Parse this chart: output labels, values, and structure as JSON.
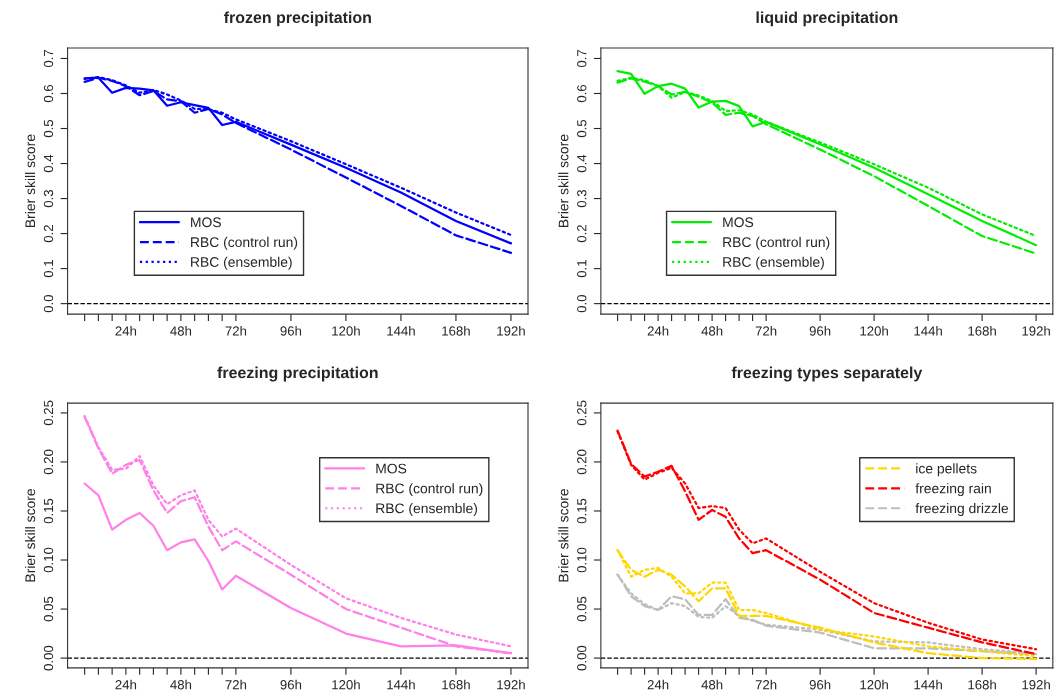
{
  "chart_data": [
    {
      "type": "line",
      "title": "frozen precipitation",
      "ylabel": "Brier skill score",
      "x": [
        6,
        12,
        18,
        24,
        30,
        36,
        42,
        48,
        54,
        60,
        66,
        72,
        96,
        120,
        144,
        168,
        192
      ],
      "xlim": [
        -1.44,
        199.44
      ],
      "ylim": [
        -0.03,
        0.73
      ],
      "xticks": [
        {
          "value": 6,
          "label": null
        },
        {
          "value": 12,
          "label": null
        },
        {
          "value": 18,
          "label": null
        },
        {
          "value": 24,
          "label": "24h"
        },
        {
          "value": 30,
          "label": null
        },
        {
          "value": 36,
          "label": null
        },
        {
          "value": 42,
          "label": null
        },
        {
          "value": 48,
          "label": "48h"
        },
        {
          "value": 54,
          "label": null
        },
        {
          "value": 60,
          "label": null
        },
        {
          "value": 66,
          "label": null
        },
        {
          "value": 72,
          "label": "72h"
        },
        {
          "value": 96,
          "label": "96h"
        },
        {
          "value": 120,
          "label": "120h"
        },
        {
          "value": 144,
          "label": "144h"
        },
        {
          "value": 168,
          "label": "168h"
        },
        {
          "value": 192,
          "label": "192h"
        }
      ],
      "yticks": [
        {
          "value": 0,
          "label": "0.0"
        },
        0.1,
        0.2,
        0.3,
        0.4,
        0.5,
        0.6,
        0.7
      ],
      "legend": "bottom left",
      "grid": false,
      "ref_lines": [
        {
          "axis": "y",
          "value": 0,
          "color": "#000000",
          "line_style": "dashed"
        }
      ],
      "series": [
        {
          "name": "MOS",
          "color": "#0000ff",
          "line_style": "solid",
          "values": [
            0.643,
            0.645,
            0.602,
            0.616,
            0.614,
            0.609,
            0.565,
            0.575,
            0.567,
            0.559,
            0.51,
            0.519,
            0.454,
            0.388,
            0.317,
            0.236,
            0.172
          ]
        },
        {
          "name": "RBC (control run)",
          "color": "#0000ff",
          "line_style": "dashed",
          "values": [
            0.633,
            0.645,
            0.636,
            0.621,
            0.595,
            0.607,
            0.583,
            0.578,
            0.545,
            0.556,
            0.54,
            0.516,
            0.44,
            0.36,
            0.279,
            0.195,
            0.145
          ]
        },
        {
          "name": "RBC (ensemble)",
          "color": "#0000ff",
          "line_style": "dotted",
          "values": [
            0.642,
            0.647,
            0.638,
            0.623,
            0.602,
            0.61,
            0.597,
            0.58,
            0.556,
            0.555,
            0.545,
            0.526,
            0.464,
            0.398,
            0.331,
            0.26,
            0.196
          ]
        }
      ]
    },
    {
      "type": "line",
      "title": "liquid precipitation",
      "ylabel": "Brier skill score",
      "x": [
        6,
        12,
        18,
        24,
        30,
        36,
        42,
        48,
        54,
        60,
        66,
        72,
        96,
        120,
        144,
        168,
        192
      ],
      "xlim": [
        -1.44,
        199.44
      ],
      "ylim": [
        -0.03,
        0.73
      ],
      "xticks": [
        {
          "value": 6,
          "label": null
        },
        {
          "value": 12,
          "label": null
        },
        {
          "value": 18,
          "label": null
        },
        {
          "value": 24,
          "label": "24h"
        },
        {
          "value": 30,
          "label": null
        },
        {
          "value": 36,
          "label": null
        },
        {
          "value": 42,
          "label": null
        },
        {
          "value": 48,
          "label": "48h"
        },
        {
          "value": 54,
          "label": null
        },
        {
          "value": 60,
          "label": null
        },
        {
          "value": 66,
          "label": null
        },
        {
          "value": 72,
          "label": "72h"
        },
        {
          "value": 96,
          "label": "96h"
        },
        {
          "value": 120,
          "label": "120h"
        },
        {
          "value": 144,
          "label": "144h"
        },
        {
          "value": 168,
          "label": "168h"
        },
        {
          "value": 192,
          "label": "192h"
        }
      ],
      "yticks": [
        {
          "value": 0,
          "label": "0.0"
        },
        0.1,
        0.2,
        0.3,
        0.4,
        0.5,
        0.6,
        0.7
      ],
      "legend": "bottom left",
      "grid": false,
      "ref_lines": [
        {
          "axis": "y",
          "value": 0,
          "color": "#000000",
          "line_style": "dashed"
        }
      ],
      "series": [
        {
          "name": "MOS",
          "color": "#00ee00",
          "line_style": "solid",
          "values": [
            0.664,
            0.656,
            0.599,
            0.621,
            0.628,
            0.614,
            0.56,
            0.577,
            0.579,
            0.564,
            0.506,
            0.519,
            0.455,
            0.388,
            0.312,
            0.236,
            0.167
          ]
        },
        {
          "name": "RBC (control run)",
          "color": "#00ee00",
          "line_style": "dashed",
          "values": [
            0.631,
            0.643,
            0.634,
            0.621,
            0.597,
            0.605,
            0.591,
            0.574,
            0.539,
            0.545,
            0.536,
            0.512,
            0.44,
            0.364,
            0.279,
            0.193,
            0.143
          ]
        },
        {
          "name": "RBC (ensemble)",
          "color": "#00ee00",
          "line_style": "dotted",
          "values": [
            0.636,
            0.645,
            0.638,
            0.621,
            0.588,
            0.604,
            0.594,
            0.578,
            0.55,
            0.552,
            0.54,
            0.519,
            0.46,
            0.398,
            0.331,
            0.255,
            0.193
          ]
        }
      ]
    },
    {
      "type": "line",
      "title": "freezing precipitation",
      "ylabel": "Brier skill score",
      "x": [
        6,
        12,
        18,
        24,
        30,
        36,
        42,
        48,
        54,
        60,
        66,
        72,
        96,
        120,
        144,
        168,
        192
      ],
      "xlim": [
        -1.44,
        199.44
      ],
      "ylim": [
        -0.01,
        0.26
      ],
      "xticks": [
        {
          "value": 6,
          "label": null
        },
        {
          "value": 12,
          "label": null
        },
        {
          "value": 18,
          "label": null
        },
        {
          "value": 24,
          "label": "24h"
        },
        {
          "value": 30,
          "label": null
        },
        {
          "value": 36,
          "label": null
        },
        {
          "value": 42,
          "label": null
        },
        {
          "value": 48,
          "label": "48h"
        },
        {
          "value": 54,
          "label": null
        },
        {
          "value": 60,
          "label": null
        },
        {
          "value": 66,
          "label": null
        },
        {
          "value": 72,
          "label": "72h"
        },
        {
          "value": 96,
          "label": "96h"
        },
        {
          "value": 120,
          "label": "120h"
        },
        {
          "value": 144,
          "label": "144h"
        },
        {
          "value": 168,
          "label": "168h"
        },
        {
          "value": 192,
          "label": "192h"
        }
      ],
      "yticks": [
        {
          "value": 0,
          "label": "0.00"
        },
        0.05,
        {
          "value": 0.1,
          "label": "0.10"
        },
        0.15,
        {
          "value": 0.2,
          "label": "0.20"
        },
        0.25
      ],
      "legend": "top right",
      "grid": false,
      "ref_lines": [
        {
          "axis": "y",
          "value": 0,
          "color": "#000000",
          "line_style": "dashed"
        }
      ],
      "series": [
        {
          "name": "MOS",
          "color": "#ff80e8",
          "line_style": "solid",
          "values": [
            0.178,
            0.166,
            0.131,
            0.141,
            0.148,
            0.135,
            0.11,
            0.118,
            0.121,
            0.099,
            0.07,
            0.084,
            0.051,
            0.025,
            0.012,
            0.013,
            0.005
          ]
        },
        {
          "name": "RBC (control run)",
          "color": "#ff80e8",
          "line_style": "dashed",
          "values": [
            0.246,
            0.214,
            0.188,
            0.197,
            0.202,
            0.171,
            0.148,
            0.16,
            0.164,
            0.134,
            0.11,
            0.119,
            0.085,
            0.05,
            0.031,
            0.012,
            0.005
          ]
        },
        {
          "name": "RBC (ensemble)",
          "color": "#ff80e8",
          "line_style": "dotted",
          "values": [
            0.247,
            0.215,
            0.192,
            0.193,
            0.206,
            0.176,
            0.157,
            0.166,
            0.171,
            0.141,
            0.124,
            0.132,
            0.095,
            0.061,
            0.041,
            0.024,
            0.012
          ]
        }
      ]
    },
    {
      "type": "line",
      "title": "freezing types separately",
      "ylabel": "Brier skill score",
      "x": [
        6,
        12,
        18,
        24,
        30,
        36,
        42,
        48,
        54,
        60,
        66,
        72,
        96,
        120,
        144,
        168,
        192
      ],
      "xlim": [
        -1.44,
        199.44
      ],
      "ylim": [
        -0.01,
        0.26
      ],
      "xticks": [
        {
          "value": 6,
          "label": null
        },
        {
          "value": 12,
          "label": null
        },
        {
          "value": 18,
          "label": null
        },
        {
          "value": 24,
          "label": "24h"
        },
        {
          "value": 30,
          "label": null
        },
        {
          "value": 36,
          "label": null
        },
        {
          "value": 42,
          "label": null
        },
        {
          "value": 48,
          "label": "48h"
        },
        {
          "value": 54,
          "label": null
        },
        {
          "value": 60,
          "label": null
        },
        {
          "value": 66,
          "label": null
        },
        {
          "value": 72,
          "label": "72h"
        },
        {
          "value": 96,
          "label": "96h"
        },
        {
          "value": 120,
          "label": "120h"
        },
        {
          "value": 144,
          "label": "144h"
        },
        {
          "value": 168,
          "label": "168h"
        },
        {
          "value": 192,
          "label": "192h"
        }
      ],
      "yticks": [
        {
          "value": 0,
          "label": "0.00"
        },
        0.05,
        {
          "value": 0.1,
          "label": "0.10"
        },
        0.15,
        {
          "value": 0.2,
          "label": "0.20"
        },
        0.25
      ],
      "legend": "top right",
      "grid": false,
      "ref_lines": [
        {
          "axis": "y",
          "value": 0,
          "color": "#000000",
          "line_style": "dashed"
        }
      ],
      "series": [
        {
          "name": "ice pellets",
          "color": "#ffd700",
          "line_style": "dashed",
          "values": [
            0.11,
            0.09,
            0.083,
            0.09,
            0.085,
            0.073,
            0.058,
            0.071,
            0.071,
            0.043,
            0.043,
            0.043,
            0.031,
            0.016,
            0.005,
            0.0,
            -0.001
          ]
        },
        {
          "color": "#ffd700",
          "line_style": "dotted",
          "values": [
            0.11,
            0.083,
            0.09,
            0.092,
            0.083,
            0.066,
            0.066,
            0.077,
            0.077,
            0.049,
            0.049,
            0.046,
            0.029,
            0.022,
            0.012,
            0.007,
            0.002
          ]
        },
        {
          "name": "freezing rain",
          "color": "#ff0000",
          "line_style": "dashed",
          "values": [
            0.232,
            0.198,
            0.185,
            0.19,
            0.196,
            0.17,
            0.141,
            0.151,
            0.144,
            0.122,
            0.107,
            0.11,
            0.08,
            0.046,
            0.031,
            0.016,
            0.004
          ]
        },
        {
          "color": "#ff0000",
          "line_style": "dotted",
          "values": [
            0.231,
            0.197,
            0.182,
            0.189,
            0.194,
            0.178,
            0.153,
            0.155,
            0.153,
            0.131,
            0.117,
            0.122,
            0.088,
            0.056,
            0.036,
            0.019,
            0.009
          ]
        },
        {
          "name": "freezing drizzle",
          "color": "#bebebe",
          "line_style": "dashed",
          "values": [
            0.085,
            0.063,
            0.053,
            0.049,
            0.063,
            0.06,
            0.044,
            0.044,
            0.06,
            0.041,
            0.039,
            0.033,
            0.026,
            0.01,
            0.01,
            0.007,
            0.004
          ]
        },
        {
          "color": "#bebebe",
          "line_style": "dotted",
          "values": [
            0.085,
            0.066,
            0.055,
            0.049,
            0.056,
            0.053,
            0.042,
            0.041,
            0.053,
            0.043,
            0.038,
            0.034,
            0.029,
            0.017,
            0.016,
            0.009,
            0.005
          ]
        }
      ]
    }
  ]
}
